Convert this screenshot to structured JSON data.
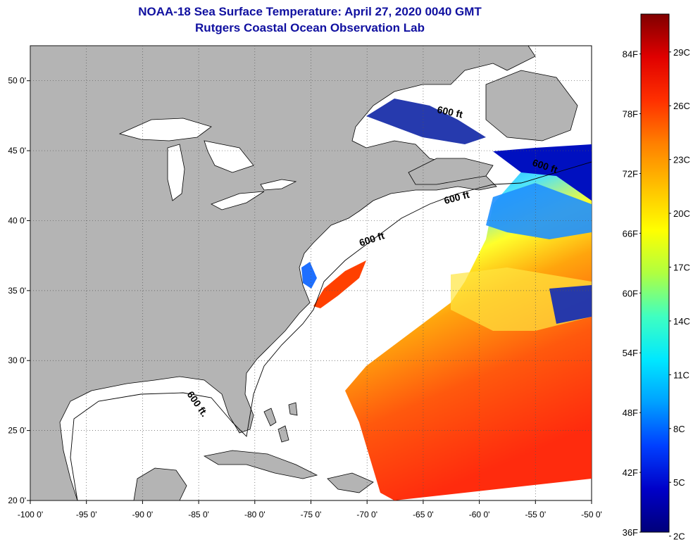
{
  "title": {
    "line1": "NOAA-18 Sea Surface Temperature:  April 27, 2020 0040 GMT",
    "line2": "Rutgers Coastal Ocean Observation Lab"
  },
  "map": {
    "lon_range": [
      -100,
      -50
    ],
    "lat_range": [
      20,
      52.5
    ],
    "lon_ticks": [
      "-100 0'",
      "-95 0'",
      "-90 0'",
      "-85 0'",
      "-80 0'",
      "-75 0'",
      "-70 0'",
      "-65 0'",
      "-60 0'",
      "-55 0'",
      "-50 0'"
    ],
    "lat_ticks": [
      "50 0'",
      "45 0'",
      "40 0'",
      "35 0'",
      "30 0'",
      "25 0'",
      "20 0'"
    ],
    "contour_labels": [
      "600 ft",
      "600 ft",
      "600 ft",
      "600 ft",
      "600 ft."
    ],
    "colors": {
      "land": "#b4b4b4",
      "water": "#ffffff",
      "grid": "#555555"
    }
  },
  "colorbar": {
    "fahrenheit": [
      "84F",
      "78F",
      "72F",
      "66F",
      "60F",
      "54F",
      "48F",
      "42F",
      "36F"
    ],
    "celsius": [
      "29C",
      "26C",
      "23C",
      "20C",
      "17C",
      "14C",
      "11C",
      "8C",
      "5C",
      "2C"
    ],
    "range_f": [
      36,
      88
    ],
    "stops": [
      "#00007a",
      "#0000c8",
      "#0040ff",
      "#00a0ff",
      "#00e8ff",
      "#40ffc0",
      "#b0ff40",
      "#ffff00",
      "#ffc000",
      "#ff8000",
      "#ff3000",
      "#e00000",
      "#800000"
    ]
  }
}
